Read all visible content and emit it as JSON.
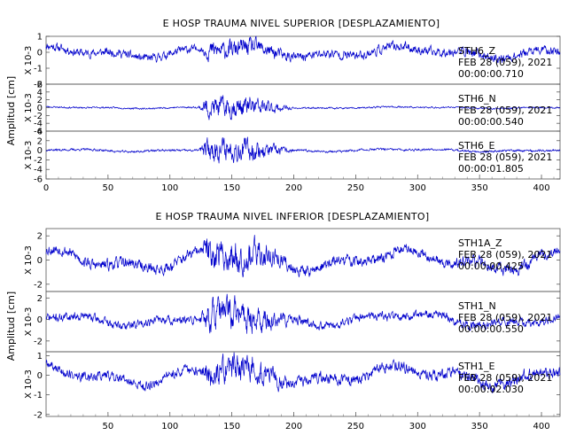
{
  "chart_data": [
    {
      "type": "line",
      "title": "E HOSP TRAUMA NIVEL SUPERIOR [DESPLAZAMIENTO]",
      "ylabel": "Amplitud [cm]",
      "xlim": [
        0,
        415
      ],
      "x_ticks": [
        0,
        50,
        100,
        150,
        200,
        250,
        300,
        350,
        400
      ],
      "color": "#0000cc",
      "grid": false,
      "traces": [
        {
          "station": "STH6",
          "component": "Z",
          "date": "FEB 28 (059), 2021",
          "time": "00:00:00.710",
          "scale_label": "X 10-3",
          "ylim": [
            -2,
            1
          ],
          "y_ticks": [
            -2,
            -1,
            0,
            1
          ],
          "amp_pre": 0.45,
          "amp_burst": 0.95,
          "amp_post": 0.5,
          "wave_amp": 0.25,
          "seed": 11
        },
        {
          "station": "STH6",
          "component": "N",
          "date": "FEB 28 (059), 2021",
          "time": "00:00:00.540",
          "scale_label": "X 10-3",
          "ylim": [
            -6,
            6
          ],
          "y_ticks": [
            -6,
            -4,
            -2,
            0,
            2,
            4,
            6
          ],
          "amp_pre": 0.35,
          "amp_burst": 4.5,
          "amp_post": 0.35,
          "wave_amp": 0.15,
          "seed": 23
        },
        {
          "station": "STH6",
          "component": "E",
          "date": "FEB 28 (059), 2021",
          "time": "00:00:01.805",
          "scale_label": "X 10-3",
          "ylim": [
            -6,
            4
          ],
          "y_ticks": [
            -6,
            -4,
            -2,
            0,
            2,
            4
          ],
          "amp_pre": 0.4,
          "amp_burst": 4.0,
          "amp_post": 0.4,
          "wave_amp": 0.2,
          "seed": 37
        }
      ]
    },
    {
      "type": "line",
      "title": "E HOSP TRAUMA NIVEL INFERIOR [DESPLAZAMIENTO]",
      "ylabel": "Amplitud [cm]",
      "xlim": [
        0,
        415
      ],
      "x_ticks": [
        50,
        100,
        150,
        200,
        250,
        300,
        350,
        400
      ],
      "color": "#0000cc",
      "grid": false,
      "traces": [
        {
          "station": "STH1A",
          "component": "Z",
          "date": "FEB 28 (059), 2021",
          "time": "00:00:00.425",
          "scale_label": "X 10-3",
          "ylim": [
            -2.6,
            2.6
          ],
          "y_ticks": [
            -2,
            0,
            2
          ],
          "amp_pre": 0.8,
          "amp_burst": 2.2,
          "amp_post": 0.8,
          "wave_amp": 0.6,
          "seed": 53
        },
        {
          "station": "STH1",
          "component": "N",
          "date": "FEB 28 (059), 2021",
          "time": "00:00:00.550",
          "scale_label": "X 10-3",
          "ylim": [
            -3.0,
            2.6
          ],
          "y_ticks": [
            -2,
            0,
            2
          ],
          "amp_pre": 0.7,
          "amp_burst": 2.4,
          "amp_post": 0.7,
          "wave_amp": 0.4,
          "seed": 71
        },
        {
          "station": "STH1",
          "component": "E",
          "date": "FEB 28 (059), 2021",
          "time": "00:00:02.030",
          "scale_label": "X 10-3",
          "ylim": [
            -2.1,
            1.2
          ],
          "y_ticks": [
            -2,
            -1,
            0,
            1
          ],
          "amp_pre": 0.45,
          "amp_burst": 1.2,
          "amp_post": 0.5,
          "wave_amp": 0.35,
          "seed": 89
        }
      ]
    }
  ]
}
